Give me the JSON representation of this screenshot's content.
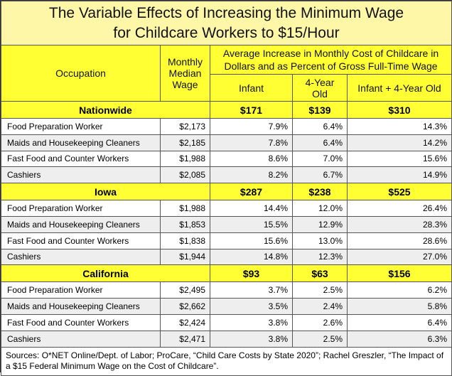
{
  "title": {
    "line1": "The Variable Effects of Increasing the Minimum Wage",
    "line2": "for Childcare Workers to $15/Hour"
  },
  "headers": {
    "occupation": "Occupation",
    "monthly_median_wage": "Monthly Median Wage",
    "avg_increase": "Average Increase in Monthly Cost of Childcare in Dollars and as  Percent of Gross Full-Time Wage",
    "infant": "Infant",
    "four_year_old": "4-Year Old",
    "infant_plus_four": "Infant + 4-Year Old"
  },
  "sections": [
    {
      "name": "Nationwide",
      "infant": "$171",
      "four": "$139",
      "both": "$310",
      "rows": [
        {
          "occupation": "Food Preparation Worker",
          "wage": "$2,173",
          "infant": "7.9%",
          "four": "6.4%",
          "both": "14.3%"
        },
        {
          "occupation": "Maids and Housekeeping Cleaners",
          "wage": "$2,185",
          "infant": "7.8%",
          "four": "6.4%",
          "both": "14.2%"
        },
        {
          "occupation": "Fast Food and Counter Workers",
          "wage": "$1,988",
          "infant": "8.6%",
          "four": "7.0%",
          "both": "15.6%"
        },
        {
          "occupation": "Cashiers",
          "wage": "$2,085",
          "infant": "8.2%",
          "four": "6.7%",
          "both": "14.9%"
        }
      ]
    },
    {
      "name": "Iowa",
      "infant": "$287",
      "four": "$238",
      "both": "$525",
      "rows": [
        {
          "occupation": "Food Preparation Worker",
          "wage": "$1,988",
          "infant": "14.4%",
          "four": "12.0%",
          "both": "26.4%"
        },
        {
          "occupation": "Maids and Housekeeping Cleaners",
          "wage": "$1,853",
          "infant": "15.5%",
          "four": "12.9%",
          "both": "28.3%"
        },
        {
          "occupation": "Fast Food and Counter Workers",
          "wage": "$1,838",
          "infant": "15.6%",
          "four": "13.0%",
          "both": "28.6%"
        },
        {
          "occupation": "Cashiers",
          "wage": "$1,944",
          "infant": "14.8%",
          "four": "12.3%",
          "both": "27.0%"
        }
      ]
    },
    {
      "name": "California",
      "infant": "$93",
      "four": "$63",
      "both": "$156",
      "rows": [
        {
          "occupation": "Food Preparation Worker",
          "wage": "$2,495",
          "infant": "3.7%",
          "four": "2.5%",
          "both": "6.2%"
        },
        {
          "occupation": "Maids and Housekeeping Cleaners",
          "wage": "$2,662",
          "infant": "3.5%",
          "four": "2.4%",
          "both": "5.8%"
        },
        {
          "occupation": "Fast Food and Counter Workers",
          "wage": "$2,424",
          "infant": "3.8%",
          "four": "2.6%",
          "both": "6.4%"
        },
        {
          "occupation": "Cashiers",
          "wage": "$2,471",
          "infant": "3.8%",
          "four": "2.5%",
          "both": "6.3%"
        }
      ]
    }
  ],
  "sources": "Sources: O*NET Online/Dept. of Labor; ProCare, “Child Care Costs by State 2020”; Rachel Greszler, “The Impact of a $15 Federal Minimum Wage on the Cost of Childcare”.",
  "colors": {
    "header_yellow": "#ffff33",
    "title_yellow": "#fff7a8",
    "row_gray": "#eeeeee"
  }
}
